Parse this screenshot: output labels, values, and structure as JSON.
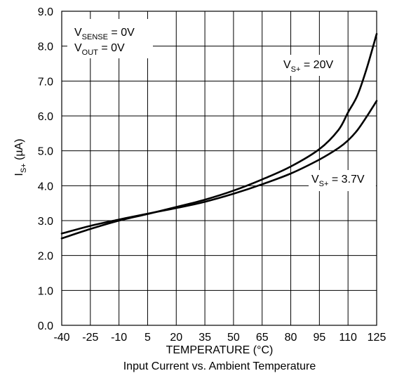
{
  "chart_data": {
    "type": "line",
    "title": "",
    "caption": "Input Current vs. Ambient Temperature",
    "xlabel": "TEMPERATURE (°C)",
    "ylabel": {
      "main": "I",
      "sub": "S+",
      "rest": " (µA)"
    },
    "xlim": [
      -40,
      125
    ],
    "ylim": [
      0,
      9
    ],
    "x_ticks": [
      -40,
      -25,
      -10,
      5,
      20,
      35,
      50,
      65,
      80,
      95,
      110,
      125
    ],
    "y_ticks": [
      "0.0",
      "1.0",
      "2.0",
      "3.0",
      "4.0",
      "5.0",
      "6.0",
      "7.0",
      "8.0",
      "9.0"
    ],
    "grid": true,
    "annotations": {
      "conditions": [
        {
          "main": "V",
          "sub": "SENSE",
          "rest": " = 0V"
        },
        {
          "main": "V",
          "sub": "OUT",
          "rest": " = 0V"
        }
      ],
      "series_labels": [
        {
          "main": "V",
          "sub": "S+",
          "rest": " = 20V"
        },
        {
          "main": "V",
          "sub": "S+",
          "rest": " = 3.7V"
        }
      ]
    },
    "series": [
      {
        "name": "V_S+ = 20V",
        "color": "#000000",
        "x": [
          -40,
          -25,
          -10,
          5,
          20,
          35,
          50,
          65,
          80,
          95,
          105,
          110,
          115,
          120,
          125
        ],
        "y": [
          2.49,
          2.76,
          3.0,
          3.19,
          3.39,
          3.6,
          3.86,
          4.18,
          4.55,
          5.05,
          5.6,
          6.1,
          6.6,
          7.4,
          8.35
        ]
      },
      {
        "name": "V_S+ = 3.7V",
        "color": "#000000",
        "x": [
          -40,
          -25,
          -10,
          5,
          20,
          35,
          50,
          65,
          80,
          95,
          105,
          110,
          115,
          120,
          125
        ],
        "y": [
          2.63,
          2.85,
          3.03,
          3.2,
          3.36,
          3.54,
          3.77,
          4.04,
          4.35,
          4.75,
          5.08,
          5.3,
          5.6,
          6.0,
          6.43
        ]
      }
    ]
  }
}
